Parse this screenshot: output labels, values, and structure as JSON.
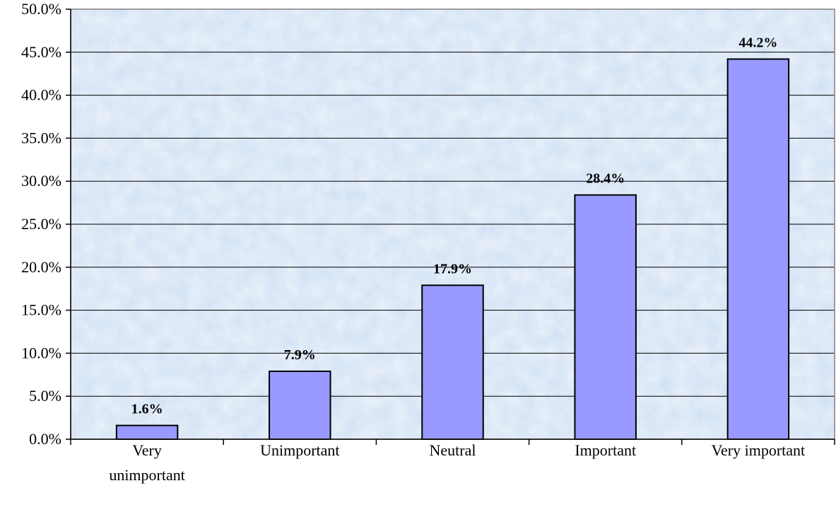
{
  "chart_data": {
    "type": "bar",
    "title": "",
    "xlabel": "",
    "ylabel": "",
    "categories": [
      [
        "Very",
        "unimportant"
      ],
      [
        "Unimportant"
      ],
      [
        "Neutral"
      ],
      [
        "Important"
      ],
      [
        "Very important"
      ]
    ],
    "values": [
      1.6,
      7.9,
      17.9,
      28.4,
      44.2
    ],
    "data_labels": [
      "1.6%",
      "7.9%",
      "17.9%",
      "28.4%",
      "44.2%"
    ],
    "ylim": [
      0,
      50
    ],
    "yticks": [
      0,
      5,
      10,
      15,
      20,
      25,
      30,
      35,
      40,
      45,
      50
    ],
    "ytick_labels": [
      "0.0%",
      "5.0%",
      "10.0%",
      "15.0%",
      "20.0%",
      "25.0%",
      "30.0%",
      "35.0%",
      "40.0%",
      "45.0%",
      "50.0%"
    ],
    "grid": true,
    "legend": "none",
    "colors": {
      "bar_fill": "#9999ff",
      "bar_stroke": "#000000",
      "plot_background": "#cfe0f4",
      "gridline": "#000000"
    }
  }
}
